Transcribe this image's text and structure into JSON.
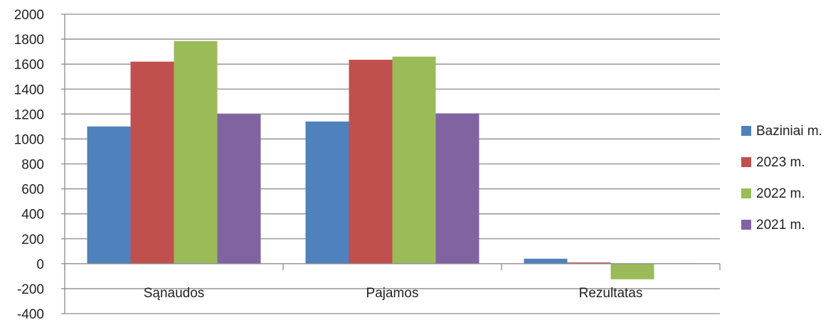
{
  "chart_data": {
    "type": "bar",
    "categories": [
      "Sąnaudos",
      "Pajamos",
      "Rezultatas"
    ],
    "series": [
      {
        "name": "Baziniai m.",
        "color": "#4f81bd",
        "values": [
          1100,
          1140,
          40
        ]
      },
      {
        "name": "2023 m.",
        "color": "#c0504d",
        "values": [
          1620,
          1635,
          10
        ]
      },
      {
        "name": "2022 m.",
        "color": "#9bbb59",
        "values": [
          1785,
          1660,
          -125
        ]
      },
      {
        "name": "2021 m.",
        "color": "#8064a2",
        "values": [
          1200,
          1205,
          3
        ]
      }
    ],
    "ylim": [
      -400,
      2000
    ],
    "yticks": [
      "2000",
      "1800",
      "1600",
      "1400",
      "1200",
      "1000",
      "800",
      "600",
      "400",
      "200",
      "0",
      "-200",
      "-400"
    ],
    "grid": true,
    "legend_position": "right"
  }
}
